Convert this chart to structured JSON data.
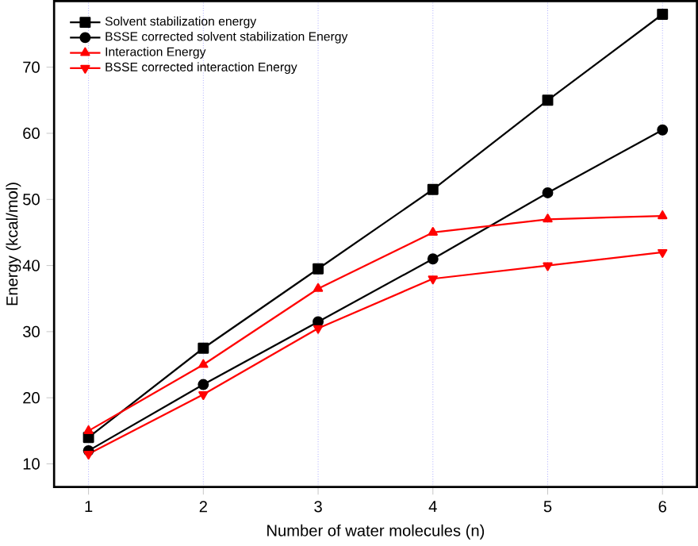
{
  "chart_data": {
    "type": "line",
    "xlabel": "Number of water molecules (n)",
    "ylabel": "Energy (kcal/mol)",
    "x": [
      1,
      2,
      3,
      4,
      5,
      6
    ],
    "xlim": [
      0.7,
      6.3
    ],
    "ylim": [
      6.5,
      80
    ],
    "xticks": [
      1,
      2,
      3,
      4,
      5,
      6
    ],
    "yticks": [
      10,
      20,
      30,
      40,
      50,
      60,
      70
    ],
    "grid": "x",
    "legend": "top left",
    "series": [
      {
        "name": "Solvent stabilization energy",
        "color": "#000000",
        "marker": "square",
        "values": [
          14,
          27.5,
          39.5,
          51.5,
          65,
          78
        ]
      },
      {
        "name": "BSSE corrected solvent stabilization Energy",
        "color": "#000000",
        "marker": "circle",
        "values": [
          12,
          22,
          31.5,
          41,
          51,
          60.5
        ]
      },
      {
        "name": "Interaction Energy",
        "color": "#ff0000",
        "marker": "triangle",
        "values": [
          15,
          25,
          36.5,
          45,
          47,
          47.5
        ]
      },
      {
        "name": "BSSE corrected interaction Energy",
        "color": "#ff0000",
        "marker": "triangle down",
        "values": [
          11.5,
          20.5,
          30.5,
          38,
          40,
          42
        ]
      }
    ]
  }
}
